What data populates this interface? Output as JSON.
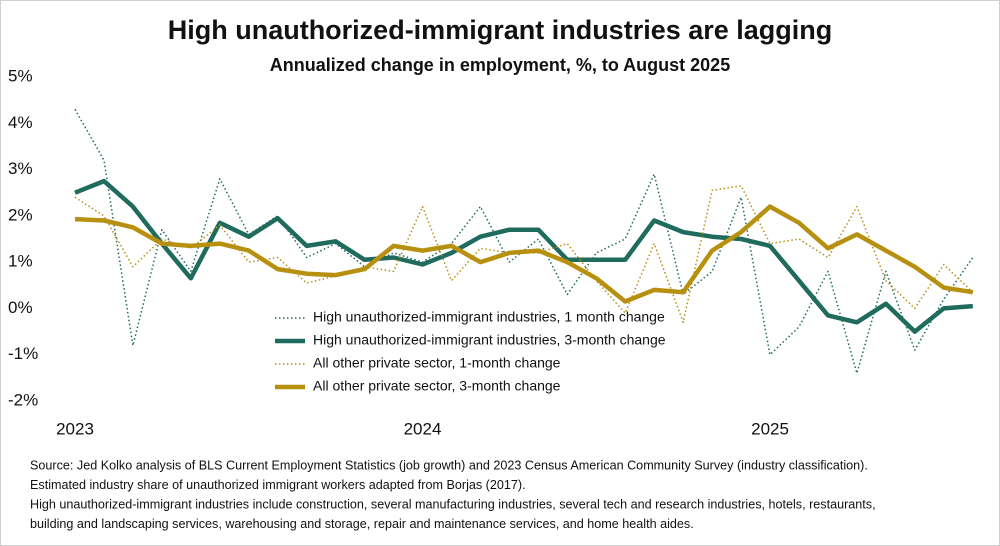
{
  "chart_data": {
    "type": "line",
    "title": "High unauthorized-immigrant industries are lagging",
    "subtitle": "Annualized change in employment, %, to August 2025",
    "categories": [
      "2023",
      null,
      null,
      null,
      null,
      null,
      null,
      null,
      null,
      null,
      null,
      null,
      "2024",
      null,
      null,
      null,
      null,
      null,
      null,
      null,
      null,
      null,
      null,
      null,
      "2025",
      null,
      null,
      null,
      null,
      null,
      null,
      null
    ],
    "series": [
      {
        "name": "High unauthorized-immigrant industries, 1 month change",
        "color": "#1f6b5e",
        "style": "dotted",
        "values": [
          4.3,
          3.2,
          -0.8,
          1.7,
          0.8,
          2.8,
          1.6,
          2.0,
          1.1,
          1.4,
          0.9,
          1.2,
          1.0,
          1.4,
          2.2,
          1.0,
          1.5,
          0.3,
          1.2,
          1.5,
          2.9,
          0.3,
          0.8,
          2.4,
          -1.0,
          -0.4,
          0.8,
          -1.4,
          0.8,
          -0.9,
          0.2,
          1.1
        ]
      },
      {
        "name": "High unauthorized-immigrant industries, 3-month change",
        "color": "#1f6b5e",
        "style": "solid",
        "values": [
          2.5,
          2.75,
          2.2,
          1.4,
          0.65,
          1.85,
          1.55,
          1.95,
          1.35,
          1.45,
          1.05,
          1.1,
          0.95,
          1.2,
          1.55,
          1.7,
          1.7,
          1.05,
          1.05,
          1.05,
          1.9,
          1.65,
          1.55,
          1.5,
          1.35,
          0.6,
          -0.15,
          -0.3,
          0.1,
          -0.5,
          0.0,
          0.05
        ]
      },
      {
        "name": "All other private sector, 1-month change",
        "color": "#b8900f",
        "style": "dotted",
        "values": [
          2.4,
          2.0,
          0.9,
          1.5,
          1.3,
          1.8,
          1.0,
          1.1,
          0.55,
          0.7,
          0.9,
          0.8,
          2.2,
          0.6,
          1.3,
          1.2,
          1.2,
          1.4,
          0.6,
          -0.1,
          1.4,
          -0.3,
          2.55,
          2.65,
          1.4,
          1.5,
          1.1,
          2.2,
          0.6,
          0.0,
          0.95,
          0.35
        ]
      },
      {
        "name": "All other private sector, 3-month change",
        "color": "#b8900f",
        "style": "solid",
        "values": [
          1.93,
          1.9,
          1.75,
          1.4,
          1.35,
          1.4,
          1.25,
          0.85,
          0.75,
          0.72,
          0.85,
          1.35,
          1.25,
          1.35,
          1.0,
          1.2,
          1.25,
          1.0,
          0.65,
          0.15,
          0.4,
          0.35,
          1.25,
          1.65,
          2.2,
          1.85,
          1.3,
          1.6,
          1.25,
          0.9,
          0.45,
          0.35
        ]
      }
    ],
    "ylim": [
      -2,
      5
    ],
    "yticks": [
      {
        "value": -2,
        "label": "-2%"
      },
      {
        "value": -1,
        "label": "-1%"
      },
      {
        "value": 0,
        "label": "0%"
      },
      {
        "value": 1,
        "label": "1%"
      },
      {
        "value": 2,
        "label": "2%"
      },
      {
        "value": 3,
        "label": "3%"
      },
      {
        "value": 4,
        "label": "4%"
      },
      {
        "value": 5,
        "label": "5%"
      }
    ],
    "grid": false,
    "legend": "center",
    "footnotes": [
      "Source: Jed Kolko analysis of BLS Current Employment Statistics (job growth) and 2023 Census American Community Survey (industry classification).",
      "Estimated industry share of unauthorized immigrant workers adapted from Borjas (2017).",
      "High unauthorized-immigrant industries include construction, several manufacturing industries, several tech and research industries, hotels, restaurants,",
      "building and landscaping services, warehousing and storage, repair and maintenance services, and home health aides."
    ]
  }
}
